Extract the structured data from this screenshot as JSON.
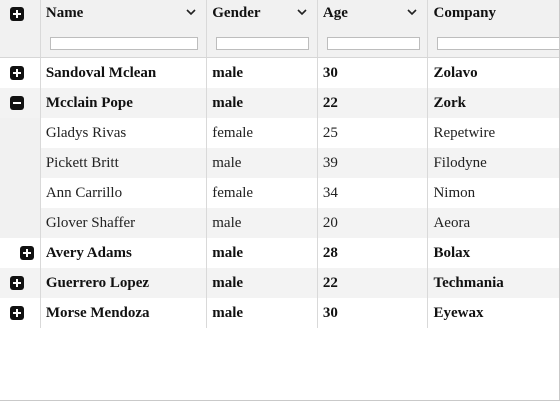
{
  "columns": [
    {
      "label": "Name"
    },
    {
      "label": "Gender"
    },
    {
      "label": "Age"
    },
    {
      "label": "Company"
    }
  ],
  "rows": [
    {
      "type": "group",
      "state": "collapsed",
      "name": "Sandoval Mclean",
      "gender": "male",
      "age": "30",
      "company": "Zolavo"
    },
    {
      "type": "group",
      "state": "expanded",
      "name": "Mcclain Pope",
      "gender": "male",
      "age": "22",
      "company": "Zork"
    },
    {
      "type": "child",
      "name": "Gladys Rivas",
      "gender": "female",
      "age": "25",
      "company": "Repetwire"
    },
    {
      "type": "child",
      "name": "Pickett Britt",
      "gender": "male",
      "age": "39",
      "company": "Filodyne"
    },
    {
      "type": "child",
      "name": "Ann Carrillo",
      "gender": "female",
      "age": "34",
      "company": "Nimon"
    },
    {
      "type": "child",
      "name": "Glover Shaffer",
      "gender": "male",
      "age": "20",
      "company": "Aeora"
    },
    {
      "type": "group",
      "state": "collapsed",
      "name": "Avery Adams",
      "gender": "male",
      "age": "28",
      "company": "Bolax"
    },
    {
      "type": "group",
      "state": "collapsed",
      "name": "Guerrero Lopez",
      "gender": "male",
      "age": "22",
      "company": "Techmania"
    },
    {
      "type": "group",
      "state": "collapsed",
      "name": "Morse Mendoza",
      "gender": "male",
      "age": "30",
      "company": "Eyewax"
    }
  ]
}
